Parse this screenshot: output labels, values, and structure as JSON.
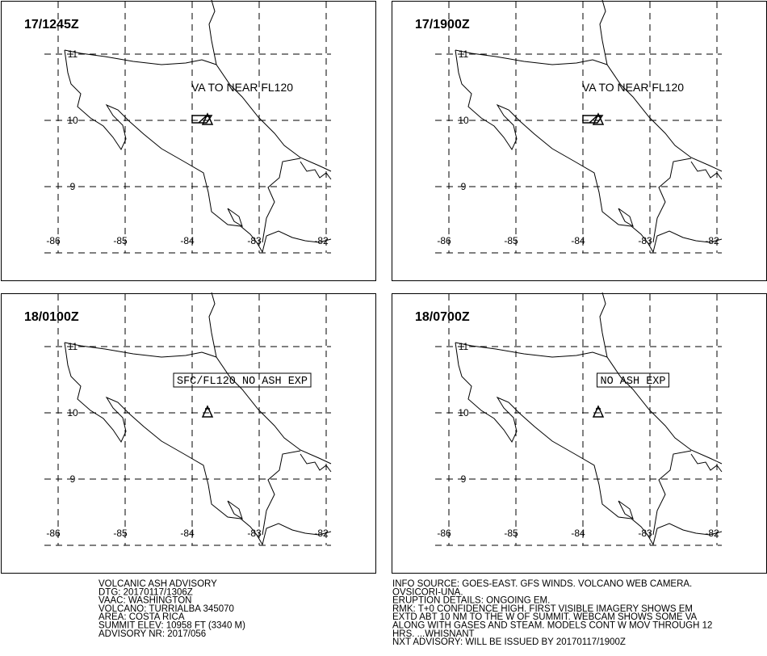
{
  "panels": [
    {
      "time": "17/1245Z",
      "annotation": "VA TO NEAR FL120",
      "boxed": false,
      "ash": true
    },
    {
      "time": "17/1900Z",
      "annotation": "VA TO NEAR FL120",
      "boxed": false,
      "ash": true
    },
    {
      "time": "18/0100Z",
      "annotation": "SFC/FL120 NO ASH EXP",
      "boxed": true,
      "ash": false
    },
    {
      "time": "18/0700Z",
      "annotation": "NO ASH EXP",
      "boxed": true,
      "ash": false
    }
  ],
  "grid": {
    "lat": [
      11,
      10,
      9
    ],
    "lon": [
      -86,
      -85,
      -84,
      -83,
      -82
    ]
  },
  "advisory": {
    "left": [
      "VOLCANIC ASH ADVISORY",
      "DTG: 20170117/1306Z",
      "VAAC: WASHINGTON",
      "VOLCANO: TURRIALBA 345070",
      "AREA: COSTA RICA",
      "SUMMIT ELEV: 10958 FT (3340 M)",
      "ADVISORY NR: 2017/056"
    ],
    "right": [
      "INFO SOURCE: GOES-EAST. GFS WINDS. VOLCANO WEB CAMERA.",
      "OVSICORI-UNA.",
      "ERUPTION DETAILS: ONGOING EM.",
      "RMK: T+0 CONFIDENCE HIGH. FIRST VISIBLE IMAGERY SHOWS EM",
      "EXTD ABT 10 NM TO THE W OF SUMMIT. WEBCAM SHOWS SOME VA",
      "ALONG WITH GASES AND STEAM. MODELS CONT W MOV THROUGH 12",
      "HRS. ...WHISNANT",
      "NXT ADVISORY: WILL BE ISSUED BY 20170117/1900Z"
    ]
  }
}
